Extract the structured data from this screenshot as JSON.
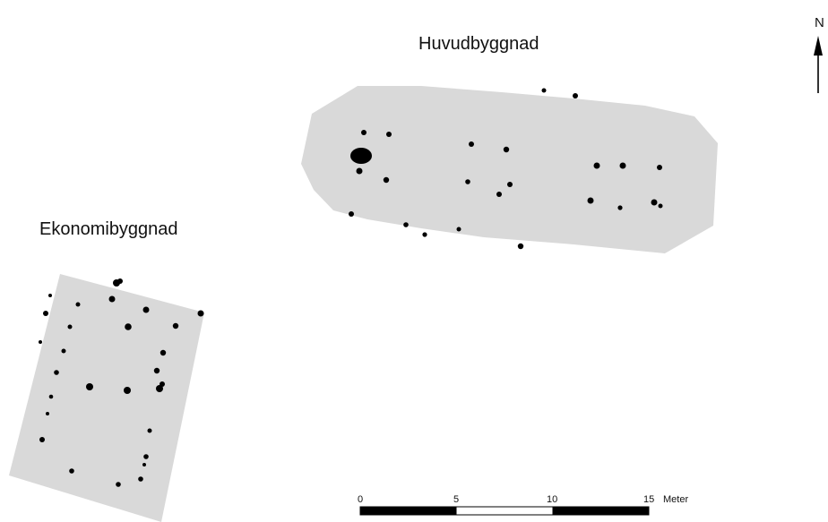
{
  "map": {
    "labels": {
      "main_building": "Huvudbyggnad",
      "outbuilding": "Ekonomibyggnad"
    },
    "north_arrow": {
      "letter": "N"
    },
    "scale_bar": {
      "ticks": [
        "0",
        "5",
        "10",
        "15"
      ],
      "unit": "Meter"
    },
    "colors": {
      "building_fill": "#d9d9d9",
      "post_hole": "#000000",
      "scale_dark": "#000000",
      "scale_light": "#ffffff"
    }
  }
}
